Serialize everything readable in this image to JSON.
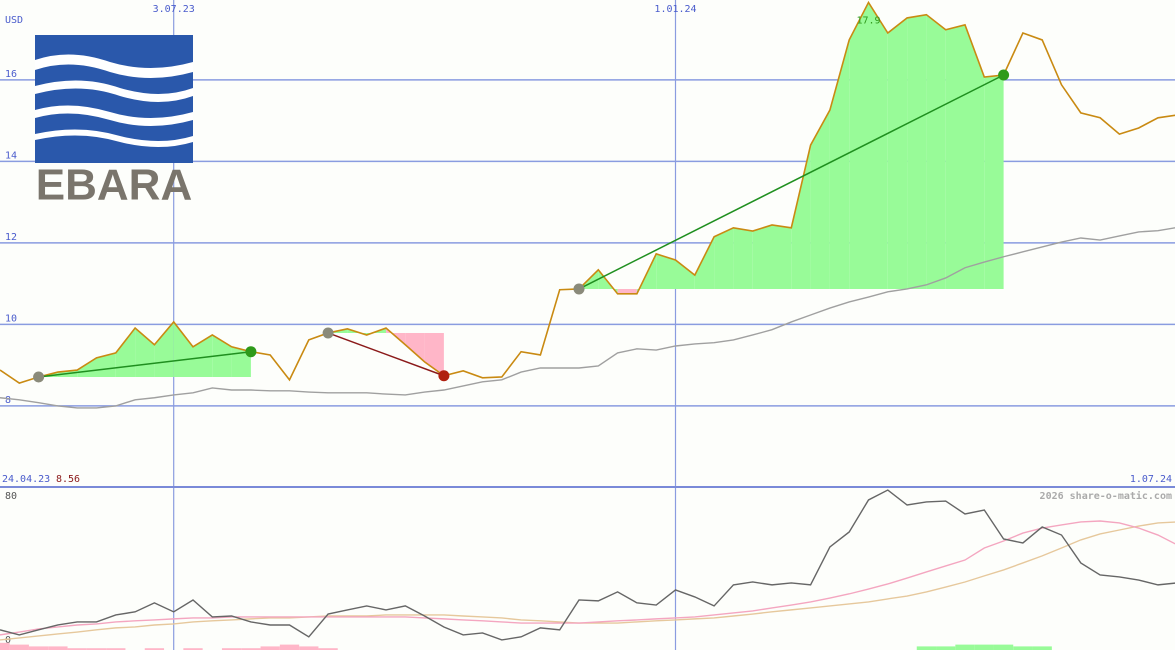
{
  "chart_data": [
    {
      "type": "line",
      "axis_label": "USD",
      "categories": [
        "24.04.23",
        null,
        null,
        null,
        null,
        null,
        null,
        null,
        null,
        "3.07.23",
        null,
        null,
        null,
        null,
        null,
        null,
        null,
        null,
        null,
        null,
        null,
        null,
        null,
        null,
        null,
        null,
        null,
        null,
        null,
        null,
        null,
        null,
        null,
        null,
        null,
        "1.01.24",
        null,
        null,
        null,
        null,
        null,
        null,
        null,
        null,
        null,
        null,
        null,
        null,
        null,
        null,
        null,
        null,
        null,
        null,
        null,
        null,
        null,
        null,
        null,
        null,
        null,
        "1.07.24"
      ],
      "ylim": [
        6.01,
        17.96
      ],
      "yticks": [
        8,
        10,
        12,
        14,
        16
      ],
      "grid": true,
      "series": [
        {
          "color": "#c98a12",
          "values": [
            8.88,
            8.56,
            8.71,
            8.83,
            8.88,
            9.18,
            9.3,
            9.91,
            9.5,
            10.06,
            9.45,
            9.74,
            9.45,
            9.33,
            9.25,
            8.64,
            9.62,
            9.79,
            9.89,
            9.74,
            9.91,
            9.5,
            9.08,
            8.74,
            8.86,
            8.69,
            8.71,
            9.33,
            9.25,
            10.85,
            10.87,
            11.34,
            10.75,
            10.75,
            11.73,
            11.58,
            11.21,
            12.15,
            12.37,
            12.29,
            12.44,
            12.37,
            14.4,
            15.26,
            16.98,
            17.9,
            17.15,
            17.52,
            17.6,
            17.23,
            17.35,
            16.07,
            16.12,
            17.15,
            16.98,
            15.88,
            15.19,
            15.07,
            14.67,
            14.82,
            15.07,
            15.14
          ]
        },
        {
          "color": "#a0a0a0",
          "values": [
            8.2,
            8.15,
            8.08,
            8.0,
            7.95,
            7.95,
            8.0,
            8.15,
            8.2,
            8.27,
            8.32,
            8.44,
            8.39,
            8.39,
            8.37,
            8.37,
            8.34,
            8.32,
            8.32,
            8.32,
            8.29,
            8.27,
            8.34,
            8.39,
            8.49,
            8.59,
            8.64,
            8.83,
            8.93,
            8.93,
            8.93,
            8.98,
            9.3,
            9.4,
            9.37,
            9.47,
            9.52,
            9.55,
            9.62,
            9.74,
            9.87,
            10.06,
            10.23,
            10.4,
            10.55,
            10.67,
            10.8,
            10.87,
            10.97,
            11.14,
            11.39,
            11.53,
            11.66,
            11.78,
            11.9,
            12.02,
            12.12,
            12.07,
            12.17,
            12.27,
            12.3,
            12.38
          ]
        }
      ],
      "trades": [
        {
          "from": 2,
          "to": 13
        },
        {
          "from": 17,
          "to": 23
        },
        {
          "from": 30,
          "to": 52
        }
      ],
      "high_label": "17.9",
      "low_label": "8.56"
    },
    {
      "type": "oscillator",
      "ylim": [
        -5.6,
        85
      ],
      "yticks": [
        0,
        80
      ],
      "series": [
        {
          "color": "#666666",
          "values": [
            5.6,
            2.8,
            5.6,
            8.3,
            10,
            10,
            13.9,
            15.6,
            20.6,
            15.6,
            22.2,
            12.8,
            13.3,
            10,
            8.3,
            8.3,
            1.7,
            14.4,
            16.7,
            18.9,
            16.7,
            18.9,
            13.3,
            7.2,
            2.8,
            3.9,
            0,
            1.7,
            6.7,
            5.6,
            22.2,
            21.7,
            26.7,
            20.6,
            19.4,
            27.8,
            23.9,
            18.9,
            30.6,
            32.2,
            30.6,
            31.7,
            30.6,
            51.7,
            60,
            77.8,
            83.3,
            75,
            76.7,
            77.2,
            70,
            72.2,
            56.1,
            53.9,
            62.8,
            58.3,
            42.8,
            36.1,
            35,
            33.3,
            30.6,
            31.7
          ]
        },
        {
          "color": "#f4a6c0",
          "values": [
            2.8,
            4.4,
            6.1,
            7.2,
            8.3,
            8.9,
            10,
            10.6,
            11.1,
            11.7,
            12.2,
            12.2,
            12.8,
            12.8,
            12.8,
            12.8,
            12.8,
            12.8,
            12.8,
            12.8,
            12.8,
            12.8,
            12.2,
            11.7,
            11.1,
            10.6,
            10,
            9.4,
            9.4,
            9.4,
            9.4,
            10,
            10.6,
            11.1,
            11.7,
            12.2,
            12.8,
            13.9,
            15,
            16.1,
            17.8,
            19.4,
            21.1,
            23.3,
            25.6,
            28.3,
            31.1,
            34.4,
            37.8,
            41.1,
            44.4,
            51.1,
            55,
            59.4,
            62.2,
            63.9,
            65.6,
            66.1,
            65,
            62.2,
            58.3,
            52.8
          ]
        },
        {
          "color": "#e6c89c",
          "values": [
            0,
            1.1,
            2.2,
            3.3,
            4.4,
            5.6,
            6.7,
            7.2,
            8.3,
            8.9,
            10,
            10.6,
            11.1,
            11.7,
            12.2,
            12.2,
            12.8,
            13.3,
            13.3,
            13.3,
            13.9,
            13.9,
            13.9,
            13.9,
            13.3,
            12.8,
            12.2,
            11.1,
            10.6,
            10,
            9.4,
            9.4,
            9.4,
            10,
            10.6,
            11.1,
            11.7,
            12.2,
            13.3,
            14.4,
            15.6,
            16.7,
            17.8,
            18.9,
            20,
            21.1,
            22.8,
            24.4,
            26.7,
            29.4,
            32.2,
            35.6,
            38.9,
            42.8,
            46.7,
            51.1,
            55.6,
            58.9,
            61.1,
            63.3,
            65,
            65.6
          ]
        }
      ],
      "histogram": [
        -4,
        -3,
        -2,
        -2,
        -1,
        -1,
        -1,
        0,
        -1,
        0,
        -1,
        0,
        -1,
        -1,
        -2,
        -3,
        -2,
        -1,
        0,
        0,
        0,
        0,
        0,
        0,
        0,
        0,
        0,
        0,
        0,
        0,
        0,
        0,
        0,
        0,
        0,
        0,
        0,
        0,
        0,
        0,
        0,
        0,
        0,
        0,
        0,
        0,
        0,
        0,
        2,
        2,
        3,
        3,
        3,
        2,
        2,
        0,
        0,
        0,
        0,
        0,
        0,
        0
      ],
      "watermark": "2026 share-o-matic.com"
    }
  ],
  "logo_text": "EBARA"
}
